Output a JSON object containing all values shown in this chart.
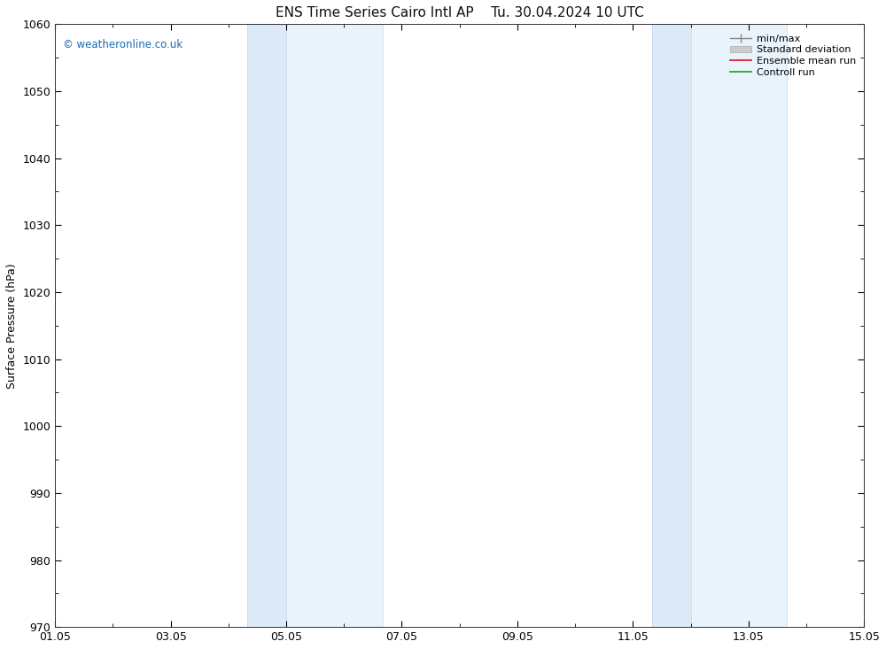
{
  "title_left": "ENS Time Series Cairo Intl AP",
  "title_right": "Tu. 30.04.2024 10 UTC",
  "ylabel": "Surface Pressure (hPa)",
  "ylim": [
    970,
    1060
  ],
  "yticks": [
    970,
    980,
    990,
    1000,
    1010,
    1020,
    1030,
    1040,
    1050,
    1060
  ],
  "xlim_days": [
    0,
    14
  ],
  "xtick_positions": [
    0,
    2,
    4,
    6,
    8,
    10,
    12,
    14
  ],
  "xtick_labels": [
    "01.05",
    "03.05",
    "05.05",
    "07.05",
    "09.05",
    "11.05",
    "13.05",
    "15.05"
  ],
  "shade_bands": [
    {
      "xmin": 3.33,
      "xmax": 4.0,
      "color": "#dbeaf6"
    },
    {
      "xmin": 4.0,
      "xmax": 5.67,
      "color": "#e8f3fb"
    },
    {
      "xmin": 10.33,
      "xmax": 11.0,
      "color": "#dbeaf6"
    },
    {
      "xmin": 11.0,
      "xmax": 12.67,
      "color": "#e8f3fb"
    }
  ],
  "plot_bg_color": "#ffffff",
  "fig_bg_color": "#ffffff",
  "watermark": "© weatheronline.co.uk",
  "watermark_color": "#1a6ab5",
  "legend_labels": [
    "min/max",
    "Standard deviation",
    "Ensemble mean run",
    "Controll run"
  ],
  "legend_line_color": "#888888",
  "legend_std_color": "#cccccc",
  "legend_mean_color": "#dd2222",
  "legend_ctrl_color": "#22aa22",
  "title_fontsize": 11,
  "axis_label_fontsize": 9,
  "tick_fontsize": 9,
  "legend_fontsize": 8
}
